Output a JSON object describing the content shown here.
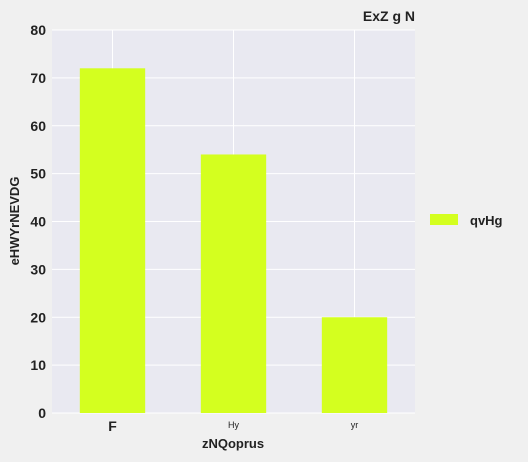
{
  "chart_data": {
    "type": "bar",
    "title": "ExZ g N",
    "xlabel": "zNQoprus",
    "ylabel": "eHWYrNEVDG",
    "categories": [
      "F",
      "Hy",
      "yr"
    ],
    "series": [
      {
        "name": "qvHg",
        "values": [
          72,
          54,
          20
        ],
        "color": "#d4ff1f"
      }
    ],
    "ylim": [
      0,
      80
    ],
    "yticks": [
      0,
      10,
      20,
      30,
      40,
      50,
      60,
      70,
      80
    ],
    "grid": true,
    "legend_position": "right",
    "background": "#e9e9f1",
    "grid_color": "#ffffff"
  }
}
